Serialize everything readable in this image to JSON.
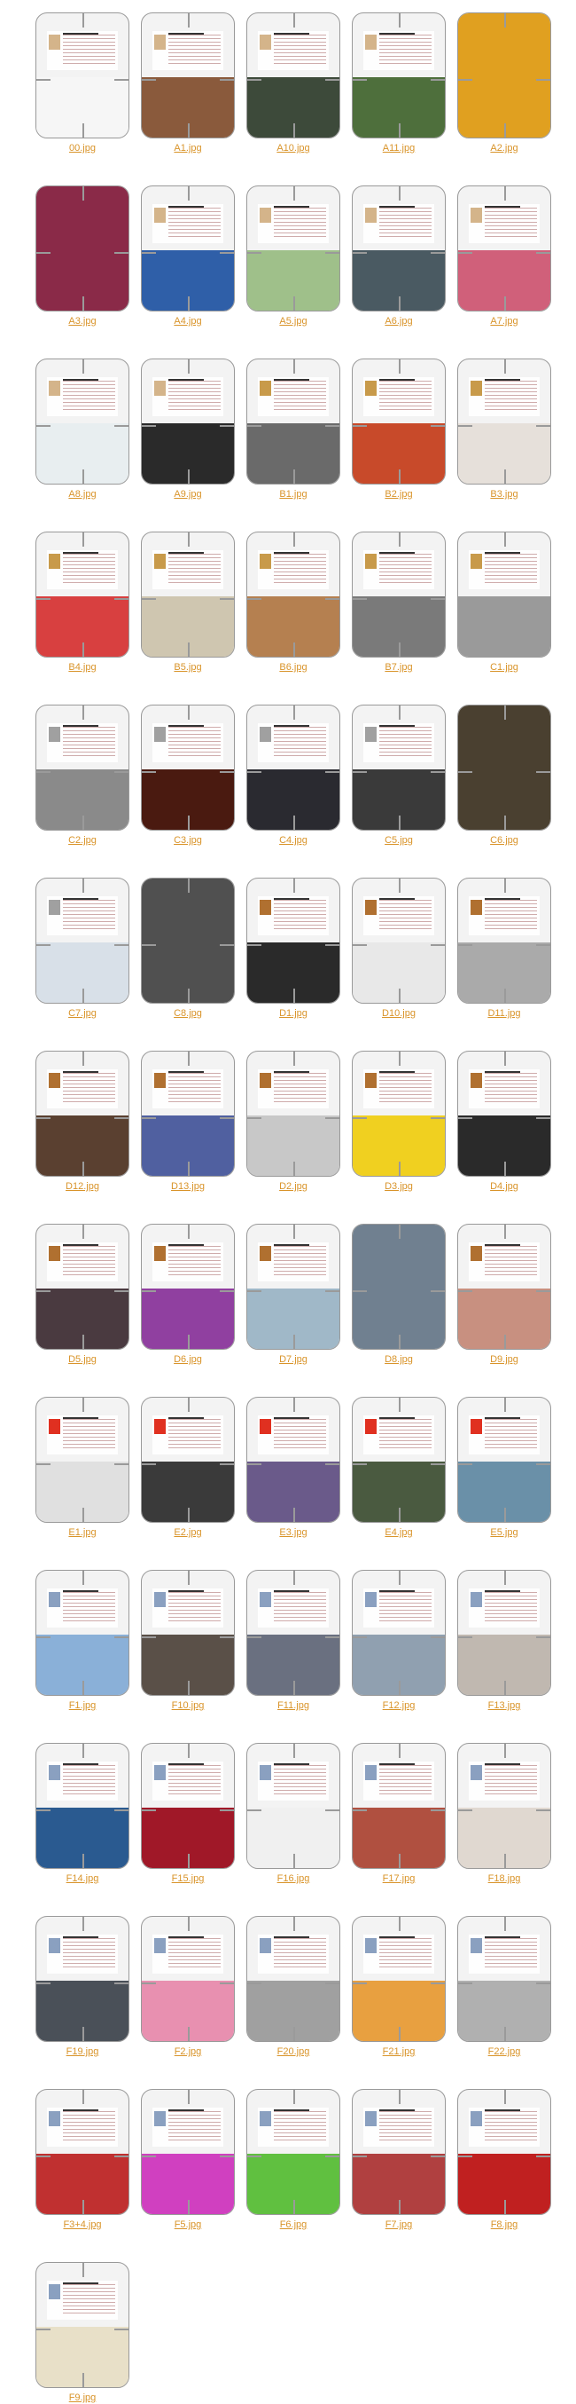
{
  "gallery": {
    "items": [
      {
        "label": "00.jpg",
        "photo": "#f6f6f6",
        "stamp": "#d4b48a",
        "full": false
      },
      {
        "label": "A1.jpg",
        "photo": "#8a5a3c",
        "stamp": "#d4b48a",
        "full": false
      },
      {
        "label": "A10.jpg",
        "photo": "#3d4a3a",
        "stamp": "#d4b48a",
        "full": false
      },
      {
        "label": "A11.jpg",
        "photo": "#4e6f3c",
        "stamp": "#d4b48a",
        "full": false
      },
      {
        "label": "A2.jpg",
        "photo": "#e0a020",
        "stamp": "#d4b48a",
        "full": true
      },
      {
        "label": "A3.jpg",
        "photo": "#8a2a48",
        "stamp": "#d4b48a",
        "full": true
      },
      {
        "label": "A4.jpg",
        "photo": "#2f5fa8",
        "stamp": "#d4b48a",
        "full": false
      },
      {
        "label": "A5.jpg",
        "photo": "#9fc08a",
        "stamp": "#d4b48a",
        "full": false
      },
      {
        "label": "A6.jpg",
        "photo": "#4a5a62",
        "stamp": "#d4b48a",
        "full": false
      },
      {
        "label": "A7.jpg",
        "photo": "#d0607a",
        "stamp": "#d4b48a",
        "full": false
      },
      {
        "label": "A8.jpg",
        "photo": "#e8eef0",
        "stamp": "#d4b48a",
        "full": false
      },
      {
        "label": "A9.jpg",
        "photo": "#2a2a2a",
        "stamp": "#d4b48a",
        "full": false
      },
      {
        "label": "B1.jpg",
        "photo": "#6a6a6a",
        "stamp": "#c89a4a",
        "full": false
      },
      {
        "label": "B2.jpg",
        "photo": "#c84a2a",
        "stamp": "#c89a4a",
        "full": false
      },
      {
        "label": "B3.jpg",
        "photo": "#e6e0da",
        "stamp": "#c89a4a",
        "full": false
      },
      {
        "label": "B4.jpg",
        "photo": "#d84040",
        "stamp": "#c89a4a",
        "full": false
      },
      {
        "label": "B5.jpg",
        "photo": "#cfc6b0",
        "stamp": "#c89a4a",
        "full": false
      },
      {
        "label": "B6.jpg",
        "photo": "#b58050",
        "stamp": "#c89a4a",
        "full": false
      },
      {
        "label": "B7.jpg",
        "photo": "#7a7a7a",
        "stamp": "#c89a4a",
        "full": false
      },
      {
        "label": "C1.jpg",
        "photo": "#9a9a9a",
        "stamp": "#c89a4a",
        "full": false
      },
      {
        "label": "C2.jpg",
        "photo": "#8a8a8a",
        "stamp": "#a0a0a0",
        "full": false
      },
      {
        "label": "C3.jpg",
        "photo": "#4a1a10",
        "stamp": "#a0a0a0",
        "full": false
      },
      {
        "label": "C4.jpg",
        "photo": "#2a2a30",
        "stamp": "#a0a0a0",
        "full": false
      },
      {
        "label": "C5.jpg",
        "photo": "#3a3a3a",
        "stamp": "#a0a0a0",
        "full": false
      },
      {
        "label": "C6.jpg",
        "photo": "#4a4030",
        "stamp": "#a0a0a0",
        "full": true
      },
      {
        "label": "C7.jpg",
        "photo": "#d8e0e8",
        "stamp": "#a0a0a0",
        "full": false
      },
      {
        "label": "C8.jpg",
        "photo": "#505050",
        "stamp": "#a0a0a0",
        "full": true
      },
      {
        "label": "D1.jpg",
        "photo": "#2a2a2a",
        "stamp": "#b07030",
        "full": false
      },
      {
        "label": "D10.jpg",
        "photo": "#e8e8e8",
        "stamp": "#b07030",
        "full": false
      },
      {
        "label": "D11.jpg",
        "photo": "#aaaaaa",
        "stamp": "#b07030",
        "full": false
      },
      {
        "label": "D12.jpg",
        "photo": "#5a4030",
        "stamp": "#b07030",
        "full": false
      },
      {
        "label": "D13.jpg",
        "photo": "#5060a0",
        "stamp": "#b07030",
        "full": false
      },
      {
        "label": "D2.jpg",
        "photo": "#c8c8c8",
        "stamp": "#b07030",
        "full": false
      },
      {
        "label": "D3.jpg",
        "photo": "#f0d020",
        "stamp": "#b07030",
        "full": false
      },
      {
        "label": "D4.jpg",
        "photo": "#2a2a2a",
        "stamp": "#b07030",
        "full": false
      },
      {
        "label": "D5.jpg",
        "photo": "#4a3a40",
        "stamp": "#b07030",
        "full": false
      },
      {
        "label": "D6.jpg",
        "photo": "#9040a0",
        "stamp": "#b07030",
        "full": false
      },
      {
        "label": "D7.jpg",
        "photo": "#a0b8c8",
        "stamp": "#b07030",
        "full": false
      },
      {
        "label": "D8.jpg",
        "photo": "#708090",
        "stamp": "#b07030",
        "full": true
      },
      {
        "label": "D9.jpg",
        "photo": "#c89080",
        "stamp": "#b07030",
        "full": false
      },
      {
        "label": "E1.jpg",
        "photo": "#e0e0e0",
        "stamp": "#e03020",
        "full": false
      },
      {
        "label": "E2.jpg",
        "photo": "#3a3a3a",
        "stamp": "#e03020",
        "full": false
      },
      {
        "label": "E3.jpg",
        "photo": "#6a5a8a",
        "stamp": "#e03020",
        "full": false
      },
      {
        "label": "E4.jpg",
        "photo": "#4a5a40",
        "stamp": "#e03020",
        "full": false
      },
      {
        "label": "E5.jpg",
        "photo": "#6a90a8",
        "stamp": "#e03020",
        "full": false
      },
      {
        "label": "F1.jpg",
        "photo": "#8ab0d8",
        "stamp": "#8aa0c0",
        "full": false
      },
      {
        "label": "F10.jpg",
        "photo": "#5a5048",
        "stamp": "#8aa0c0",
        "full": false
      },
      {
        "label": "F11.jpg",
        "photo": "#6a7080",
        "stamp": "#8aa0c0",
        "full": false
      },
      {
        "label": "F12.jpg",
        "photo": "#90a0b0",
        "stamp": "#8aa0c0",
        "full": false
      },
      {
        "label": "F13.jpg",
        "photo": "#c0b8b0",
        "stamp": "#8aa0c0",
        "full": false
      },
      {
        "label": "F14.jpg",
        "photo": "#2a5a90",
        "stamp": "#8aa0c0",
        "full": false
      },
      {
        "label": "F15.jpg",
        "photo": "#a01828",
        "stamp": "#8aa0c0",
        "full": false
      },
      {
        "label": "F16.jpg",
        "photo": "#f0f0f0",
        "stamp": "#8aa0c0",
        "full": false
      },
      {
        "label": "F17.jpg",
        "photo": "#b05040",
        "stamp": "#8aa0c0",
        "full": false
      },
      {
        "label": "F18.jpg",
        "photo": "#e0d8d0",
        "stamp": "#8aa0c0",
        "full": false
      },
      {
        "label": "F19.jpg",
        "photo": "#4a5058",
        "stamp": "#8aa0c0",
        "full": false
      },
      {
        "label": "F2.jpg",
        "photo": "#e890b0",
        "stamp": "#8aa0c0",
        "full": false
      },
      {
        "label": "F20.jpg",
        "photo": "#a0a0a0",
        "stamp": "#8aa0c0",
        "full": false
      },
      {
        "label": "F21.jpg",
        "photo": "#e8a040",
        "stamp": "#8aa0c0",
        "full": false
      },
      {
        "label": "F22.jpg",
        "photo": "#b0b0b0",
        "stamp": "#8aa0c0",
        "full": false
      },
      {
        "label": "F3+4.jpg",
        "photo": "#c03030",
        "stamp": "#8aa0c0",
        "full": false
      },
      {
        "label": "F5.jpg",
        "photo": "#d040c0",
        "stamp": "#8aa0c0",
        "full": false
      },
      {
        "label": "F6.jpg",
        "photo": "#60c040",
        "stamp": "#8aa0c0",
        "full": false
      },
      {
        "label": "F7.jpg",
        "photo": "#b04040",
        "stamp": "#8aa0c0",
        "full": false
      },
      {
        "label": "F8.jpg",
        "photo": "#c02020",
        "stamp": "#8aa0c0",
        "full": false
      },
      {
        "label": "F9.jpg",
        "photo": "#e8e0c8",
        "stamp": "#8aa0c0",
        "full": false
      }
    ]
  }
}
